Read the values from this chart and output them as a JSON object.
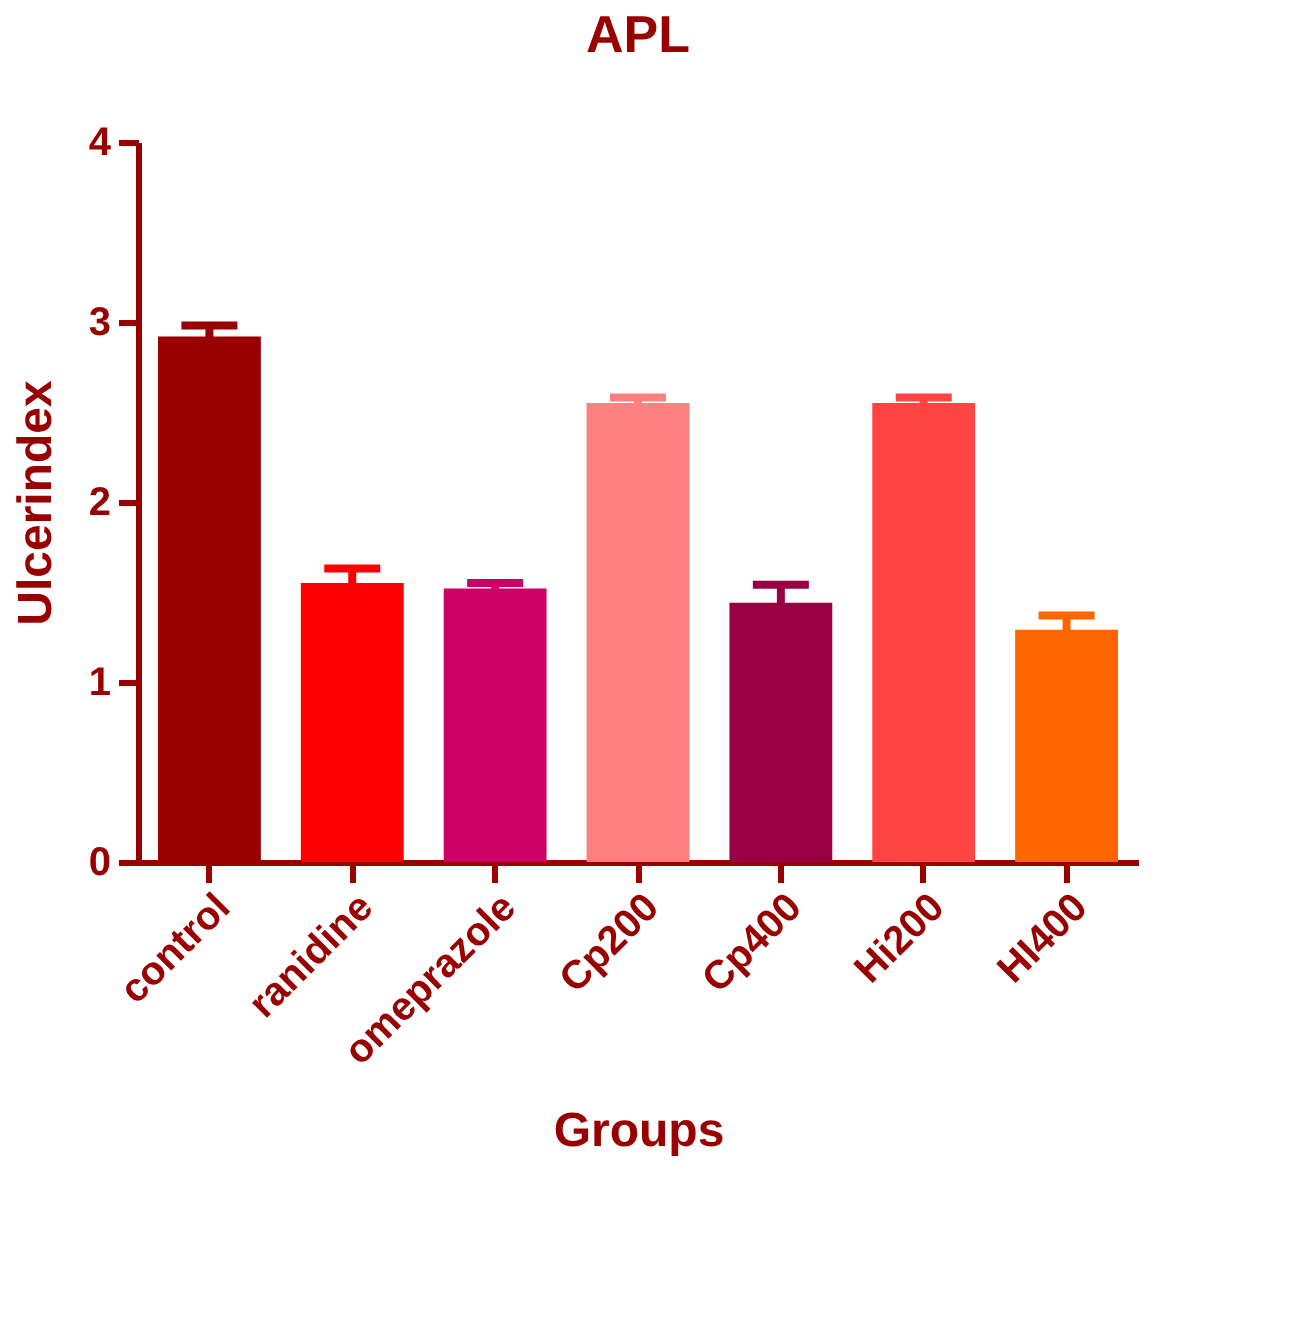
{
  "chart_data": {
    "type": "bar",
    "title": "APL",
    "xlabel": "Groups",
    "ylabel": "Ulcerindex",
    "categories": [
      "control",
      "ranidine",
      "omeprazole",
      "Cp200",
      "Cp400",
      "Hi200",
      "HI400"
    ],
    "values": [
      2.92,
      1.55,
      1.52,
      2.55,
      1.44,
      2.55,
      1.29
    ],
    "errors": [
      0.06,
      0.08,
      0.03,
      0.03,
      0.1,
      0.03,
      0.08
    ],
    "colors": [
      "#990000",
      "#ff0000",
      "#cc0066",
      "#ff8080",
      "#990044",
      "#ff4444",
      "#ff6600"
    ],
    "ylim": [
      0,
      4
    ],
    "yticks": [
      0,
      1,
      2,
      3,
      4
    ],
    "grid": false
  }
}
